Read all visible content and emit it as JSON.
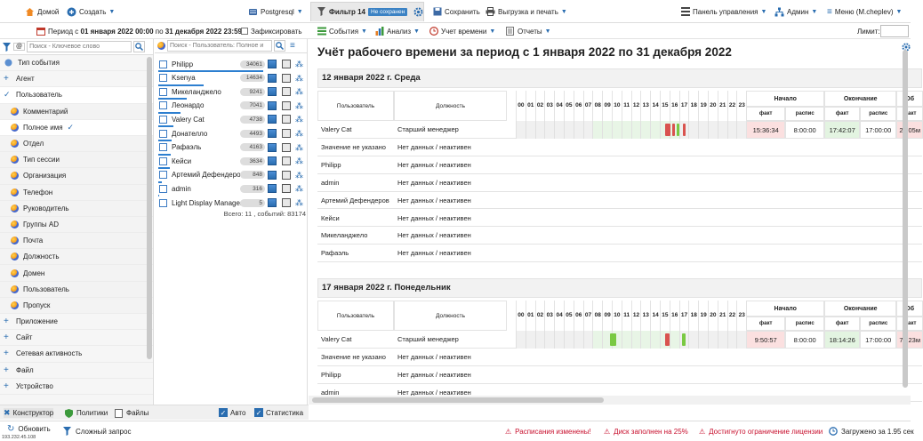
{
  "topbar": {
    "home": "Домой",
    "create": "Создать",
    "db": "Postgresql",
    "filter_tab": "Фильтр 14",
    "not_saved_badge": "Не сохранен",
    "save": "Сохранить",
    "export_print": "Выгрузка и печать",
    "dashboard": "Панель управления",
    "admin": "Админ",
    "menu": "Меню (M.cheplev)"
  },
  "toolbar2": {
    "period_prefix": "Период с ",
    "period_from": "01 января 2022 00:00",
    "period_mid": " по ",
    "period_to": "31 декабря 2022 23:59",
    "fix_label": "Зафиксировать",
    "events": "События",
    "analysis": "Анализ",
    "time_accounting": "Учет времени",
    "reports": "Отчеты",
    "limit_label": "Лимит:"
  },
  "left_search": {
    "placeholder": "Поиск - Ключевое слово",
    "at": "@"
  },
  "left_items": [
    {
      "label": "Тип события",
      "kind": "icon"
    },
    {
      "label": "Агент",
      "kind": "plus"
    },
    {
      "label": "Пользователь",
      "kind": "check"
    },
    {
      "label": "Комментарий",
      "kind": "sub"
    },
    {
      "label": "Полное имя",
      "kind": "sub-selected"
    },
    {
      "label": "Отдел",
      "kind": "sub"
    },
    {
      "label": "Тип сессии",
      "kind": "sub"
    },
    {
      "label": "Организация",
      "kind": "sub"
    },
    {
      "label": "Телефон",
      "kind": "sub"
    },
    {
      "label": "Руководитель",
      "kind": "sub"
    },
    {
      "label": "Группы AD",
      "kind": "sub"
    },
    {
      "label": "Почта",
      "kind": "sub"
    },
    {
      "label": "Должность",
      "kind": "sub"
    },
    {
      "label": "Домен",
      "kind": "sub"
    },
    {
      "label": "Пользователь",
      "kind": "sub"
    },
    {
      "label": "Пропуск",
      "kind": "sub"
    },
    {
      "label": "Приложение",
      "kind": "plus"
    },
    {
      "label": "Сайт",
      "kind": "plus"
    },
    {
      "label": "Сетевая активность",
      "kind": "plus"
    },
    {
      "label": "Файл",
      "kind": "plus"
    },
    {
      "label": "Устройство",
      "kind": "plus"
    }
  ],
  "mid_search": {
    "placeholder": "Поиск - Пользователь: Полное и"
  },
  "users": [
    {
      "name": "Philipp",
      "count": "34061",
      "bar": 1.0
    },
    {
      "name": "Ksenya",
      "count": "14634",
      "bar": 0.43
    },
    {
      "name": "Микеланджело",
      "count": "9241",
      "bar": 0.27
    },
    {
      "name": "Леонардо",
      "count": "7041",
      "bar": 0.21
    },
    {
      "name": "Valery Cat",
      "count": "4738",
      "bar": 0.14
    },
    {
      "name": "Донателло",
      "count": "4493",
      "bar": 0.13
    },
    {
      "name": "Рафаэль",
      "count": "4163",
      "bar": 0.12
    },
    {
      "name": "Кейси",
      "count": "3634",
      "bar": 0.11
    },
    {
      "name": "Артемий Дефендеров",
      "count": "848",
      "bar": 0.03
    },
    {
      "name": "admin",
      "count": "316",
      "bar": 0.01
    },
    {
      "name": "Light Display Manager",
      "count": "5",
      "bar": 0.0
    }
  ],
  "mid_total": "Всего: 11 , событий: 83174",
  "report": {
    "title": "Учёт рабочего времени за период с 1 января 2022 по 31 декабря 2022",
    "days": [
      {
        "heading": "12 января 2022 г. Среда",
        "col_user": "Пользователь",
        "col_position": "Должность",
        "col_start": "Начало",
        "col_end": "Окончание",
        "col_total": "Об",
        "sub_fact": "факт",
        "sub_plan": "распис",
        "hours": [
          "00",
          "01",
          "02",
          "03",
          "04",
          "05",
          "06",
          "07",
          "08",
          "09",
          "10",
          "11",
          "12",
          "13",
          "14",
          "15",
          "16",
          "17",
          "18",
          "19",
          "20",
          "21",
          "22",
          "23"
        ],
        "rows": [
          {
            "user": "Valery Cat",
            "position": "Старший менеджер",
            "start_fact": "15:36:34",
            "start_plan": "8:00:00",
            "end_fact": "17:42:07",
            "end_plan": "17:00:00",
            "total": "2ч 05м",
            "marks": [
              {
                "h": 15.6,
                "w": 0.5,
                "c": "#d9534f"
              },
              {
                "h": 16.3,
                "w": 0.3,
                "c": "#d9534f"
              },
              {
                "h": 16.8,
                "w": 0.25,
                "c": "#7ac943"
              },
              {
                "h": 17.4,
                "w": 0.3,
                "c": "#d9534f"
              }
            ]
          },
          {
            "user": "Значение не указано",
            "position": "Нет данных / неактивен"
          },
          {
            "user": "Philipp",
            "position": "Нет данных / неактивен"
          },
          {
            "user": "admin",
            "position": "Нет данных / неактивен"
          },
          {
            "user": "Артемий Дефендеров",
            "position": "Нет данных / неактивен"
          },
          {
            "user": "Кейси",
            "position": "Нет данных / неактивен"
          },
          {
            "user": "Микеланджело",
            "position": "Нет данных / неактивен"
          },
          {
            "user": "Рафаэль",
            "position": "Нет данных / неактивен"
          }
        ]
      },
      {
        "heading": "17 января 2022 г. Понедельник",
        "col_user": "Пользователь",
        "col_position": "Должность",
        "col_start": "Начало",
        "col_end": "Окончание",
        "col_total": "Об",
        "sub_fact": "факт",
        "sub_plan": "распис",
        "hours": [
          "00",
          "01",
          "02",
          "03",
          "04",
          "05",
          "06",
          "07",
          "08",
          "09",
          "10",
          "11",
          "12",
          "13",
          "14",
          "15",
          "16",
          "17",
          "18",
          "19",
          "20",
          "21",
          "22",
          "23"
        ],
        "rows": [
          {
            "user": "Valery Cat",
            "position": "Старший менеджер",
            "start_fact": "9:50:57",
            "start_plan": "8:00:00",
            "end_fact": "18:14:26",
            "end_plan": "17:00:00",
            "total": "7ч 23м",
            "marks": [
              {
                "h": 9.85,
                "w": 0.6,
                "c": "#7ac943"
              },
              {
                "h": 15.6,
                "w": 0.4,
                "c": "#d9534f"
              },
              {
                "h": 17.3,
                "w": 0.4,
                "c": "#7ac943"
              }
            ]
          },
          {
            "user": "Значение не указано",
            "position": "Нет данных / неактивен"
          },
          {
            "user": "Philipp",
            "position": "Нет данных / неактивен"
          },
          {
            "user": "admin",
            "position": "Нет данных / неактивен"
          }
        ]
      }
    ]
  },
  "bottom_tabs": {
    "constructor": "Конструктор",
    "policies": "Политики",
    "files": "Файлы",
    "auto": "Авто",
    "stats": "Статистика"
  },
  "status": {
    "refresh": "Обновить",
    "complex_query": "Сложный запрос",
    "ip": "193.232.45.108",
    "warn1": "Расписания изменены!",
    "warn2": "Диск заполнен на 25%",
    "warn3": "Достигнуто ограничение лицензии",
    "loaded": "Загружено за 1.95 сек"
  },
  "colors": {
    "accent": "#2a6db0",
    "warning": "#c8102e",
    "fact_red_bg": "#fbe0e0",
    "fact_green_bg": "#e3f4e1"
  }
}
